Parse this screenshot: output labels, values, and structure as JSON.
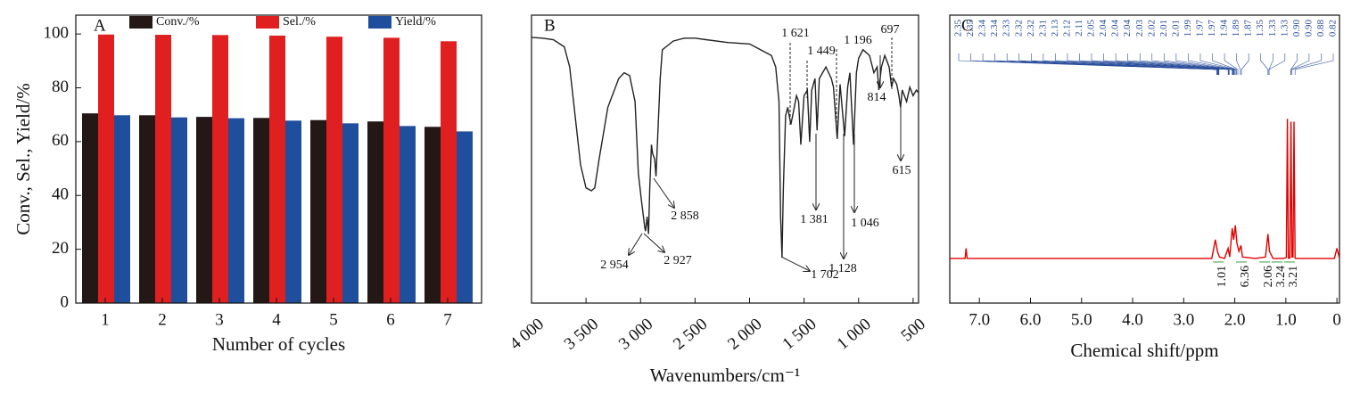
{
  "chart_data": [
    {
      "type": "bar",
      "label": "A",
      "xlabel": "Number of cycles",
      "ylabel": "Conv., Sel., Yield/%",
      "categories": [
        "1",
        "2",
        "3",
        "4",
        "5",
        "6",
        "7"
      ],
      "series": [
        {
          "name": "Conv./%",
          "color": "#231815",
          "values": [
            70.5,
            69.8,
            69.2,
            68.8,
            68.0,
            67.5,
            65.5
          ]
        },
        {
          "name": "Sel./%",
          "color": "#e02020",
          "values": [
            99.8,
            99.7,
            99.6,
            99.4,
            99.0,
            98.6,
            97.3
          ]
        },
        {
          "name": "Yield/%",
          "color": "#1f4e9c",
          "values": [
            69.8,
            69.0,
            68.7,
            67.8,
            66.8,
            65.8,
            63.8
          ]
        }
      ],
      "ylim": [
        0,
        107
      ],
      "yticks": [
        0,
        20,
        40,
        60,
        80,
        100
      ]
    },
    {
      "type": "line",
      "label": "B",
      "xlabel": "Wavenumbers/cm⁻¹",
      "color": "#222",
      "x": [
        4000,
        3900,
        3800,
        3700,
        3650,
        3600,
        3550,
        3500,
        3450,
        3420,
        3380,
        3300,
        3200,
        3150,
        3100,
        3050,
        3020,
        2990,
        2960,
        2954,
        2940,
        2927,
        2915,
        2900,
        2890,
        2870,
        2858,
        2840,
        2820,
        2800,
        2700,
        2600,
        2500,
        2400,
        2200,
        2000,
        1900,
        1800,
        1760,
        1730,
        1715,
        1702,
        1690,
        1670,
        1650,
        1621,
        1600,
        1570,
        1550,
        1530,
        1500,
        1470,
        1449,
        1430,
        1400,
        1381,
        1360,
        1330,
        1300,
        1250,
        1230,
        1196,
        1170,
        1128,
        1100,
        1080,
        1046,
        1020,
        1000,
        960,
        900,
        860,
        830,
        814,
        790,
        760,
        720,
        697,
        680,
        650,
        630,
        615,
        600,
        560,
        530,
        500,
        470,
        450
      ],
      "values": [
        92.3,
        92,
        91.5,
        89,
        82,
        65,
        48,
        40,
        39,
        40,
        50,
        68,
        78,
        80,
        79,
        70,
        45,
        35,
        26,
        25,
        30,
        24,
        40,
        55,
        52,
        50,
        44,
        60,
        78,
        88,
        91,
        92,
        92,
        91.5,
        90.5,
        90,
        88,
        86,
        82,
        70,
        30,
        16,
        40,
        65,
        68,
        62,
        66,
        72,
        70,
        55,
        72,
        74,
        56,
        74,
        78,
        60,
        78,
        80,
        82,
        78,
        75,
        57,
        76,
        58,
        75,
        80,
        55,
        80,
        85,
        88,
        86,
        80,
        82,
        74,
        82,
        86,
        82,
        75,
        78,
        76,
        72,
        68,
        74,
        70,
        75,
        72,
        74,
        73
      ],
      "xlim": [
        4000,
        450
      ],
      "ylim": [
        0,
        100
      ],
      "xticks": [
        {
          "value": 4000,
          "label": "4 000"
        },
        {
          "value": 3500,
          "label": "3 500"
        },
        {
          "value": 3000,
          "label": "3 000"
        },
        {
          "value": 2500,
          "label": "2 500"
        },
        {
          "value": 2000,
          "label": "2 000"
        },
        {
          "value": 1500,
          "label": "1 500"
        },
        {
          "value": 1000,
          "label": "1 000"
        },
        500
      ],
      "annotations": [
        {
          "value": 2954,
          "label": "2 954"
        },
        {
          "value": 2927,
          "label": "2 927"
        },
        {
          "value": 2858,
          "label": "2 858"
        },
        {
          "value": 1702,
          "label": "1 702"
        },
        {
          "value": 1621,
          "label": "1 621"
        },
        {
          "value": 1449,
          "label": "1 449"
        },
        {
          "value": 1196,
          "label": "1 196"
        },
        697,
        {
          "value": 1381,
          "label": "1 381"
        },
        {
          "value": 1128,
          "label": "1 128"
        },
        {
          "value": 1046,
          "label": "1 046"
        },
        814,
        615
      ]
    },
    {
      "type": "line",
      "label": "C",
      "xlabel": "Chemical shift/ppm",
      "color": "#e00000",
      "x": [
        7.58,
        7.28,
        7.26,
        7.24,
        2.45,
        2.38,
        2.34,
        2.3,
        2.2,
        2.13,
        2.1,
        2.05,
        2.02,
        1.99,
        1.96,
        1.92,
        1.88,
        1.85,
        1.6,
        1.4,
        1.35,
        1.32,
        1.25,
        1.05,
        0.99,
        0.97,
        0.95,
        0.92,
        0.9,
        0.88,
        0.86,
        0.84,
        0.82,
        0.78,
        0.05,
        0.0,
        -0.05
      ],
      "values": [
        15.5,
        15.5,
        19,
        15.5,
        15.5,
        22,
        18,
        16,
        15.5,
        19,
        16,
        26,
        22,
        27,
        21,
        18,
        20,
        16,
        15.5,
        16,
        24,
        18,
        15.5,
        15.5,
        15.8,
        64,
        15.6,
        15.6,
        63,
        16,
        16,
        63,
        15.6,
        15.5,
        15.5,
        19,
        15.5
      ],
      "xlim": [
        7.58,
        -0.05
      ],
      "ylim": [
        0,
        100
      ],
      "xticks": [
        {
          "value": 7,
          "label": "7.0"
        },
        {
          "value": 6,
          "label": "6.0"
        },
        {
          "value": 5,
          "label": "5.0"
        },
        {
          "value": 4,
          "label": "4.0"
        },
        {
          "value": 3,
          "label": "3.0"
        },
        {
          "value": 2,
          "label": "2.0"
        },
        {
          "value": 1,
          "label": "1.0"
        },
        0
      ],
      "peak_labels": [
        2.35,
        2.35,
        2.34,
        2.34,
        2.33,
        2.32,
        2.32,
        2.31,
        2.13,
        2.12,
        2.11,
        2.05,
        2.04,
        2.04,
        2.04,
        2.03,
        2.02,
        2.01,
        2.01,
        1.99,
        1.97,
        1.97,
        1.94,
        1.89,
        1.87,
        1.35,
        1.33,
        1.33,
        {
          "value": 0.9,
          "label": "0.90"
        },
        {
          "value": 0.9,
          "label": "0.90"
        },
        0.88,
        0.82
      ],
      "integrations": [
        1.01,
        6.36,
        2.06,
        3.24,
        3.21
      ]
    }
  ]
}
